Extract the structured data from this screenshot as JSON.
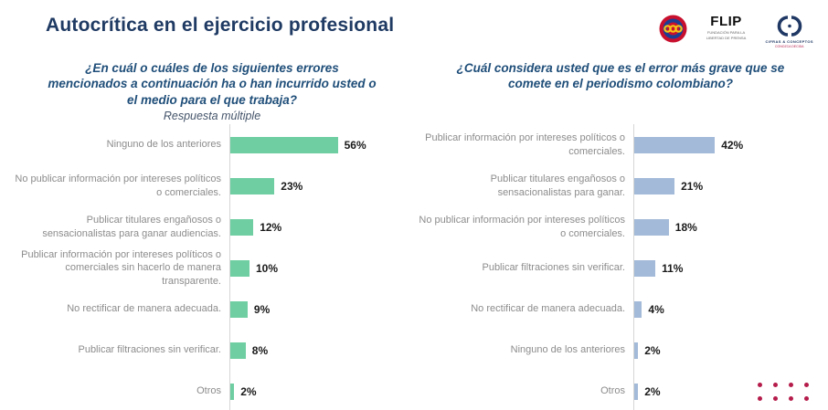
{
  "header": {
    "title": "Autocrítica en el ejercicio profesional",
    "logos": {
      "flip": {
        "text": "FLIP",
        "subtext": "FUNDACIÓN PARA LA LIBERTAD DE PRENSA"
      },
      "cifras": {
        "subtext": "CIFRAS & CONCEPTOS",
        "subtext2": "CONOZCA DECIDA"
      }
    }
  },
  "chart_data": [
    {
      "type": "bar",
      "orientation": "horizontal",
      "title": "¿En cuál o cuáles de los siguientes errores mencionados a continuación ha o han incurrido usted o el medio para el que trabaja?",
      "subtitle": "Respuesta múltiple",
      "bar_color": "#6FCFA2",
      "categories": [
        "Ninguno de los anteriores",
        "No publicar información por intereses políticos o comerciales.",
        "Publicar titulares engañosos o sensacionalistas para ganar audiencias.",
        "Publicar información por intereses políticos o comerciales sin hacerlo de manera transparente.",
        "No rectificar de manera adecuada.",
        "Publicar filtraciones sin verificar.",
        "Otros"
      ],
      "values": [
        56,
        23,
        12,
        10,
        9,
        8,
        2
      ],
      "value_labels": [
        "56%",
        "23%",
        "12%",
        "10%",
        "9%",
        "8%",
        "2%"
      ],
      "xlim": [
        0,
        60
      ],
      "grid": false,
      "legend": false
    },
    {
      "type": "bar",
      "orientation": "horizontal",
      "title": "¿Cuál considera usted que es el error más grave que se comete en el periodismo colombiano?",
      "subtitle": "",
      "bar_color": "#A3BAD8",
      "categories": [
        "Publicar información por intereses políticos o comerciales.",
        "Publicar titulares engañosos o sensacionalistas para ganar.",
        "No publicar información por intereses políticos o comerciales.",
        "Publicar filtraciones sin verificar.",
        "No rectificar de manera adecuada.",
        "Ninguno de los anteriores",
        "Otros"
      ],
      "values": [
        42,
        21,
        18,
        11,
        4,
        2,
        2
      ],
      "value_labels": [
        "42%",
        "21%",
        "18%",
        "11%",
        "4%",
        "2%",
        "2%"
      ],
      "xlim": [
        0,
        60
      ],
      "grid": false,
      "legend": false
    }
  ],
  "decoration": {
    "dot_grid": {
      "rows": 2,
      "cols": 4,
      "color": "#B51C4B"
    }
  },
  "colors": {
    "main_title": "#1F3A63",
    "chart_title": "#1F4E79",
    "category_label": "#8C8C8C",
    "value_label": "#1A1A1A",
    "axis_line": "#D6D6D6",
    "green_bar": "#6FCFA2",
    "blue_bar": "#A3BAD8"
  }
}
